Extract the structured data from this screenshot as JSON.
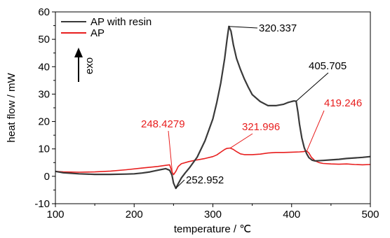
{
  "chart_data": {
    "type": "line",
    "xlabel": "temperature / ℃",
    "ylabel": "heat flow / mW",
    "xlim": [
      100,
      500
    ],
    "ylim": [
      -10,
      60
    ],
    "xticks": [
      100,
      200,
      300,
      400,
      500
    ],
    "yticks": [
      -10,
      0,
      10,
      20,
      30,
      40,
      50,
      60
    ],
    "grid": false,
    "legend_position": "top-left",
    "exo_label": "exo",
    "series": [
      {
        "name": "AP with resin",
        "color": "#3a3a3a",
        "x": [
          100,
          110,
          130,
          150,
          170,
          190,
          200,
          210,
          220,
          230,
          240,
          245,
          248,
          250,
          252.952,
          256,
          260,
          265,
          270,
          280,
          290,
          300,
          305,
          310,
          315,
          318,
          320.337,
          323,
          326,
          330,
          335,
          340,
          345,
          350,
          360,
          370,
          380,
          390,
          395,
          400,
          403,
          405.705,
          408,
          410,
          413,
          416,
          419,
          422,
          426,
          430,
          440,
          450,
          460,
          470,
          480,
          490,
          500
        ],
        "y": [
          1.8,
          1.3,
          0.9,
          0.7,
          0.7,
          0.8,
          0.9,
          1.2,
          1.6,
          2.2,
          2.8,
          2.2,
          0.5,
          -2.5,
          -4.4,
          -2.7,
          -0.6,
          1.3,
          3.0,
          7.0,
          13.0,
          21.0,
          27.0,
          34.0,
          43.0,
          50.0,
          54.7,
          53.0,
          48.0,
          43.0,
          39.0,
          35.5,
          32.5,
          29.8,
          27.3,
          25.8,
          25.8,
          26.3,
          26.9,
          27.3,
          27.5,
          27.4,
          23.5,
          19.0,
          14.0,
          10.5,
          8.3,
          6.8,
          5.9,
          5.6,
          5.8,
          6.0,
          6.2,
          6.5,
          6.7,
          6.9,
          7.2
        ]
      },
      {
        "name": "AP",
        "color": "#e81e1e",
        "x": [
          100,
          110,
          130,
          150,
          170,
          190,
          210,
          230,
          240,
          245,
          248.4279,
          250,
          253,
          256,
          260,
          270,
          280,
          290,
          300,
          305,
          310,
          315,
          318,
          321.996,
          326,
          330,
          335,
          340,
          350,
          360,
          370,
          380,
          390,
          400,
          410,
          415,
          419.246,
          422,
          425,
          430,
          435,
          440,
          450,
          460,
          470,
          480,
          490,
          500
        ],
        "y": [
          1.8,
          1.6,
          1.5,
          1.6,
          1.9,
          2.4,
          3.0,
          3.6,
          4.0,
          4.2,
          1.4,
          0.6,
          1.8,
          3.6,
          4.6,
          5.4,
          6.0,
          6.5,
          7.2,
          7.8,
          8.8,
          9.8,
          10.2,
          10.3,
          9.8,
          9.0,
          8.2,
          7.9,
          7.9,
          8.1,
          8.5,
          8.7,
          8.7,
          8.8,
          8.9,
          9.0,
          9.2,
          8.5,
          7.0,
          5.6,
          5.0,
          4.7,
          4.5,
          4.4,
          4.5,
          4.3,
          4.2,
          4.3
        ]
      }
    ],
    "annotations": [
      {
        "label": "320.337",
        "x": 320.337,
        "y": 54.7,
        "color": "#000000"
      },
      {
        "label": "405.705",
        "x": 405.705,
        "y": 27.4,
        "color": "#000000"
      },
      {
        "label": "252.952",
        "x": 252.952,
        "y": -4.4,
        "color": "#000000"
      },
      {
        "label": "248.4279",
        "x": 248.4279,
        "y": 1.4,
        "color": "#e81e1e"
      },
      {
        "label": "321.996",
        "x": 321.996,
        "y": 10.3,
        "color": "#e81e1e"
      },
      {
        "label": "419.246",
        "x": 419.246,
        "y": 9.2,
        "color": "#e81e1e"
      }
    ]
  }
}
